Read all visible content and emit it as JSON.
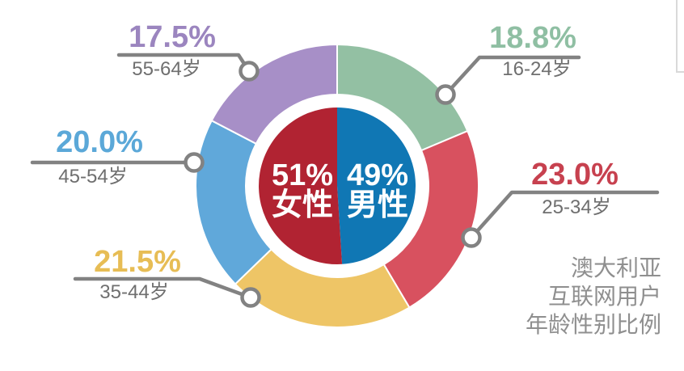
{
  "chart_data": {
    "type": "donut",
    "title": "澳大利亚互联网用户年龄性别比例",
    "caption_lines": [
      "澳大利亚",
      "互联网用户",
      "年龄性别比例"
    ],
    "direction": "clockwise",
    "start_angle": "12-oclock",
    "outer_ring": {
      "meaning": "age groups share (%)",
      "segments": [
        {
          "id": "age-16-24",
          "age": "16-24岁",
          "value": 18.8,
          "pct_label": "18.8%",
          "color": "#93c0a3",
          "label_color": "#8fbfa3"
        },
        {
          "id": "age-25-34",
          "age": "25-34岁",
          "value": 23.0,
          "pct_label": "23.0%",
          "color": "#d8515f",
          "label_color": "#c7414f"
        },
        {
          "id": "age-35-44",
          "age": "35-44岁",
          "value": 21.5,
          "pct_label": "21.5%",
          "color": "#eec566",
          "label_color": "#e7bd55"
        },
        {
          "id": "age-45-54",
          "age": "45-54岁",
          "value": 20.0,
          "pct_label": "20.0%",
          "color": "#60a8da",
          "label_color": "#5ba8d8"
        },
        {
          "id": "age-55-64",
          "age": "55-64岁",
          "value": 17.5,
          "pct_label": "17.5%",
          "color": "#a78fc7",
          "label_color": "#9b85bf"
        }
      ]
    },
    "inner_pie": {
      "meaning": "gender share (%)",
      "segments": [
        {
          "id": "male",
          "name": "男性",
          "value": 49,
          "pct_label": "49%",
          "color": "#1077b4"
        },
        {
          "id": "female",
          "name": "女性",
          "value": 51,
          "pct_label": "51%",
          "color": "#b12332"
        }
      ]
    },
    "leader_line_color": "#828282",
    "age_label_color": "#6f6f6f",
    "caption_color": "#8f8f8f",
    "center_text_color": "#ffffff"
  }
}
